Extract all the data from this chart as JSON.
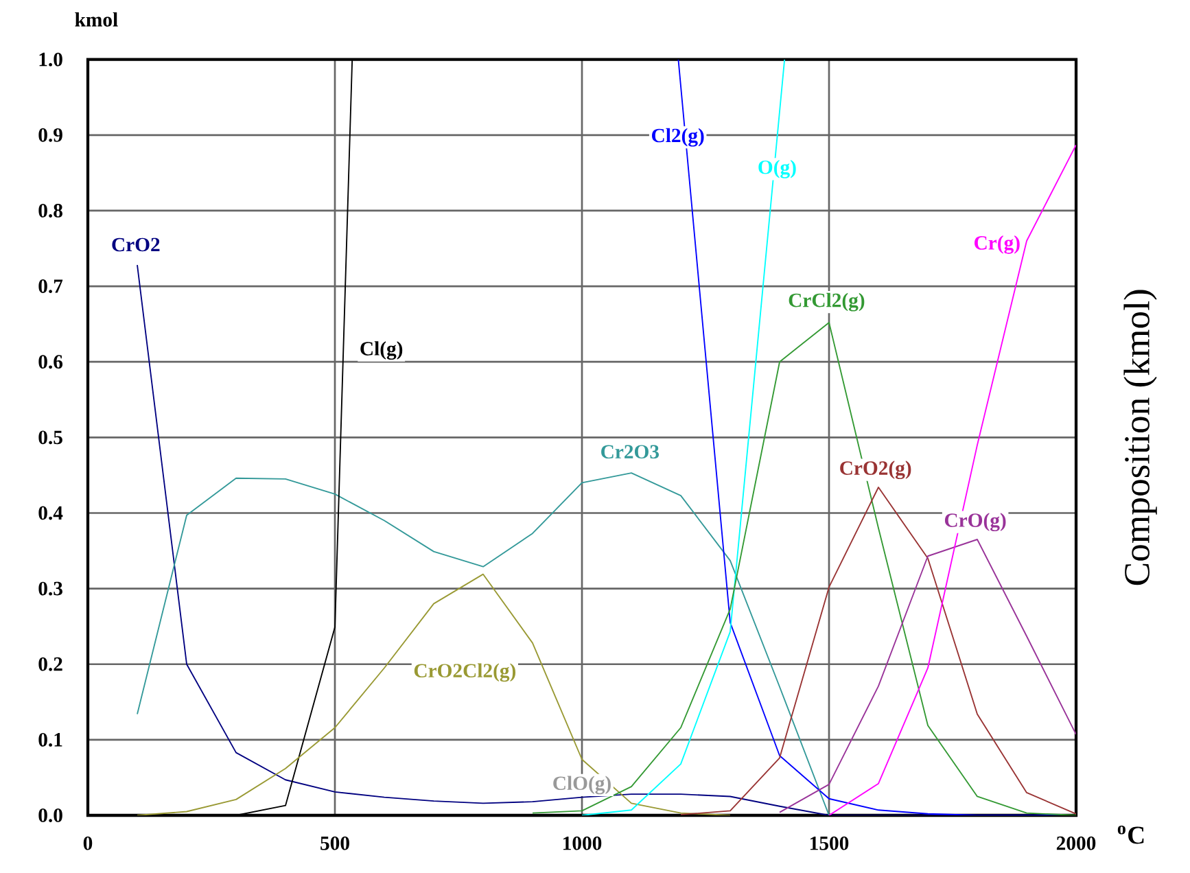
{
  "chart_data": {
    "type": "line",
    "ylabel": "Composition (kmol)",
    "xlabel": "$^{o}$C",
    "annotations": [
      "kmol",
      {
        "text": "ClO(g)",
        "x": 1000,
        "y": 0.025
      }
    ],
    "xlim": [
      0,
      2000
    ],
    "xticks": [
      0,
      500,
      1000,
      1500,
      2000
    ],
    "ylim": [
      0,
      1
    ],
    "yticks": [
      {
        "value": 0,
        "label": "0.0"
      },
      0.1,
      0.2,
      0.3,
      0.4,
      0.5,
      0.6,
      0.7,
      0.8,
      0.9,
      {
        "value": 1,
        "label": "1.0"
      }
    ],
    "grid": true,
    "series": [
      {
        "name": "CrO2",
        "color": "#000080",
        "x": [
          100,
          200,
          300,
          400,
          500,
          600,
          700,
          800,
          900,
          1000,
          1100,
          1200,
          1300,
          1400,
          1500,
          1600,
          1700,
          1800,
          1900,
          2000
        ],
        "values": [
          0.728,
          0.2,
          0.083,
          0.047,
          0.031,
          0.024,
          0.019,
          0.016,
          0.018,
          0.024,
          0.028,
          0.028,
          0.025,
          0.012,
          0,
          0,
          0,
          0,
          0,
          0
        ]
      },
      {
        "name": "Cr2O3",
        "color": "#339999",
        "x": [
          100,
          200,
          300,
          400,
          500,
          600,
          700,
          800,
          900,
          1000,
          1100,
          1200,
          1300,
          1400,
          1500
        ],
        "values": [
          0.134,
          0.397,
          0.446,
          0.445,
          0.425,
          0.39,
          0.349,
          0.329,
          0.373,
          0.44,
          0.453,
          0.423,
          0.337,
          0.17,
          0
        ]
      },
      {
        "name": "Cl(g)",
        "color": "#000000",
        "x": [
          100,
          200,
          300,
          400,
          500,
          535
        ],
        "values": [
          0,
          0,
          0,
          0.013,
          0.249,
          1.0
        ]
      },
      {
        "name": "CrO2Cl2(g)",
        "color": "#999933",
        "x": [
          100,
          200,
          300,
          400,
          500,
          600,
          700,
          800,
          900,
          1000,
          1100,
          1200,
          1300
        ],
        "values": [
          0,
          0.005,
          0.021,
          0.062,
          0.116,
          0.195,
          0.28,
          0.319,
          0.228,
          0.074,
          0.016,
          0.003,
          0
        ]
      },
      {
        "name": "Cl2(g)",
        "color": "#0000ff",
        "x": [
          1195,
          1300,
          1400,
          1500,
          1600,
          1700,
          1800,
          1900,
          2000
        ],
        "values": [
          1.0,
          0.255,
          0.079,
          0.022,
          0.007,
          0.002,
          0,
          0,
          0
        ]
      },
      {
        "name": "O(g)",
        "color": "#00ffff",
        "x": [
          1000,
          1100,
          1200,
          1300,
          1410
        ],
        "values": [
          0,
          0.007,
          0.068,
          0.243,
          1.0
        ]
      },
      {
        "name": "CrCl2(g)",
        "color": "#339933",
        "x": [
          900,
          1000,
          1100,
          1200,
          1300,
          1400,
          1500,
          1600,
          1700,
          1800,
          1900,
          2000
        ],
        "values": [
          0.003,
          0.006,
          0.038,
          0.116,
          0.273,
          0.6,
          0.652,
          0.38,
          0.119,
          0.025,
          0.003,
          0
        ]
      },
      {
        "name": "CrO2(g)",
        "color": "#993333",
        "x": [
          1200,
          1300,
          1400,
          1500,
          1600,
          1700,
          1800,
          1900,
          2000
        ],
        "values": [
          0.001,
          0.006,
          0.076,
          0.302,
          0.434,
          0.34,
          0.134,
          0.03,
          0.002
        ]
      },
      {
        "name": "CrO(g)",
        "color": "#993399",
        "x": [
          1400,
          1500,
          1600,
          1700,
          1800,
          1900,
          2000
        ],
        "values": [
          0.004,
          0.041,
          0.171,
          0.343,
          0.365,
          0.237,
          0.107
        ]
      },
      {
        "name": "Cr(g)",
        "color": "#ff00ff",
        "x": [
          1500,
          1600,
          1700,
          1800,
          1900,
          2000
        ],
        "values": [
          0,
          0.042,
          0.195,
          0.49,
          0.76,
          0.887
        ]
      }
    ]
  }
}
